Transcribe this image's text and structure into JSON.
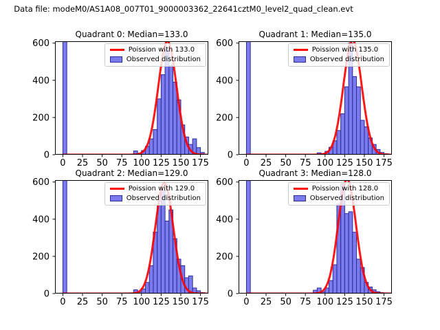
{
  "figure": {
    "suptitle": "Data file: modeM0/AS1A08_007T01_9000003362_22641cztM0_level2_quad_clean.evt",
    "background": "#ffffff"
  },
  "colors": {
    "bar_fill": "#7b7bee",
    "bar_edge": "#2b2b99",
    "curve": "#ff0000",
    "axis": "#000000",
    "legend_border": "#cccccc"
  },
  "chart_data": [
    {
      "type": "bar",
      "subtype": "histogram-with-fit-line",
      "quadrant": 0,
      "title": "Quadrant 0: Median=133.0",
      "median": 133.0,
      "legend": {
        "curve": "Poission with 133.0",
        "hist": "Observed distribution"
      },
      "legend_position": "upper right",
      "xlabel": "",
      "ylabel": "",
      "xlim": [
        -10,
        185
      ],
      "ylim": [
        0,
        610
      ],
      "xticks": [
        0,
        25,
        50,
        75,
        100,
        125,
        150,
        175
      ],
      "yticks": [
        0,
        200,
        400,
        600
      ],
      "grid": false,
      "bins": {
        "start": 0,
        "width": 5
      },
      "zero_bin_clipped_at_top": true,
      "counts": [
        999,
        0,
        0,
        0,
        0,
        0,
        0,
        0,
        0,
        0,
        0,
        0,
        0,
        0,
        0,
        0,
        0,
        0,
        20,
        8,
        22,
        45,
        85,
        135,
        300,
        430,
        565,
        480,
        390,
        295,
        160,
        95,
        55,
        85,
        38,
        12
      ],
      "curve": {
        "model": "poisson",
        "lambda": 133.0,
        "peak": 610
      }
    },
    {
      "type": "bar",
      "subtype": "histogram-with-fit-line",
      "quadrant": 1,
      "title": "Quadrant 1: Median=135.0",
      "median": 135.0,
      "legend": {
        "curve": "Poission with 135.0",
        "hist": "Observed distribution"
      },
      "legend_position": "upper right",
      "xlabel": "",
      "ylabel": "",
      "xlim": [
        -10,
        185
      ],
      "ylim": [
        0,
        610
      ],
      "xticks": [
        0,
        25,
        50,
        75,
        100,
        125,
        150,
        175
      ],
      "yticks": [
        0,
        200,
        400,
        600
      ],
      "grid": false,
      "bins": {
        "start": 0,
        "width": 5
      },
      "zero_bin_clipped_at_top": true,
      "counts": [
        999,
        0,
        0,
        0,
        0,
        0,
        0,
        0,
        0,
        0,
        0,
        0,
        0,
        0,
        0,
        0,
        0,
        0,
        10,
        6,
        18,
        40,
        75,
        130,
        220,
        365,
        600,
        420,
        365,
        185,
        150,
        90,
        55,
        28,
        12,
        5
      ],
      "curve": {
        "model": "poisson",
        "lambda": 135.0,
        "peak": 615
      }
    },
    {
      "type": "bar",
      "subtype": "histogram-with-fit-line",
      "quadrant": 2,
      "title": "Quadrant 2: Median=129.0",
      "median": 129.0,
      "legend": {
        "curve": "Poission with 129.0",
        "hist": "Observed distribution"
      },
      "legend_position": "upper right",
      "xlabel": "",
      "ylabel": "",
      "xlim": [
        -10,
        185
      ],
      "ylim": [
        0,
        610
      ],
      "xticks": [
        0,
        25,
        50,
        75,
        100,
        125,
        150,
        175
      ],
      "yticks": [
        0,
        200,
        400,
        600
      ],
      "grid": false,
      "bins": {
        "start": 0,
        "width": 5
      },
      "zero_bin_clipped_at_top": true,
      "counts": [
        999,
        0,
        0,
        0,
        0,
        0,
        0,
        0,
        0,
        0,
        0,
        0,
        0,
        0,
        0,
        0,
        0,
        0,
        20,
        8,
        25,
        60,
        150,
        330,
        475,
        555,
        390,
        450,
        295,
        185,
        150,
        85,
        95,
        30,
        15,
        5
      ],
      "curve": {
        "model": "poisson",
        "lambda": 129.0,
        "peak": 595
      }
    },
    {
      "type": "bar",
      "subtype": "histogram-with-fit-line",
      "quadrant": 3,
      "title": "Quadrant 3: Median=128.0",
      "median": 128.0,
      "legend": {
        "curve": "Poission with 128.0",
        "hist": "Observed distribution"
      },
      "legend_position": "upper right",
      "xlabel": "",
      "ylabel": "",
      "xlim": [
        -10,
        185
      ],
      "ylim": [
        0,
        610
      ],
      "xticks": [
        0,
        25,
        50,
        75,
        100,
        125,
        150,
        175
      ],
      "yticks": [
        0,
        200,
        400,
        600
      ],
      "grid": false,
      "bins": {
        "start": 0,
        "width": 5
      },
      "zero_bin_clipped_at_top": true,
      "counts": [
        999,
        0,
        0,
        0,
        0,
        0,
        0,
        0,
        0,
        0,
        0,
        0,
        0,
        0,
        0,
        0,
        0,
        18,
        30,
        10,
        30,
        70,
        155,
        480,
        590,
        430,
        440,
        330,
        185,
        140,
        60,
        35,
        20,
        10,
        5,
        0
      ],
      "curve": {
        "model": "poisson",
        "lambda": 128.0,
        "peak": 615
      }
    }
  ]
}
